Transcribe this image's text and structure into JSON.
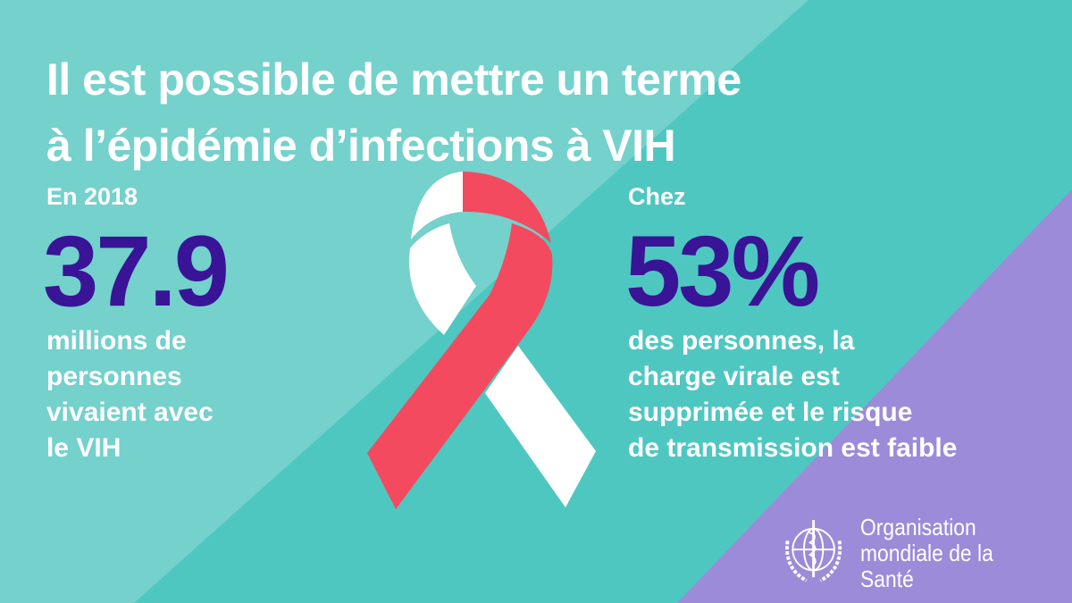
{
  "title": {
    "line1": "Il est possible de mettre un terme",
    "line2": "à l’épidémie d’infections à VIH"
  },
  "left": {
    "intro": "En 2018",
    "number": "37.9",
    "desc": [
      "millions de",
      "personnes",
      "vivaient avec",
      "le VIH"
    ]
  },
  "right": {
    "intro": "Chez",
    "number": "53%",
    "desc": [
      "des personnes, la",
      "charge virale est",
      "supprimée et le risque",
      "de transmission est faible"
    ]
  },
  "logo": {
    "line1": "Organisation",
    "line2": "mondiale de la Santé"
  },
  "colors": {
    "background": "#4fc7c1",
    "light_band": "#74d1cc",
    "purple": "#9b8bd8",
    "number": "#3a1496",
    "ribbon_red": "#f34a5f",
    "ribbon_white": "#ffffff"
  }
}
